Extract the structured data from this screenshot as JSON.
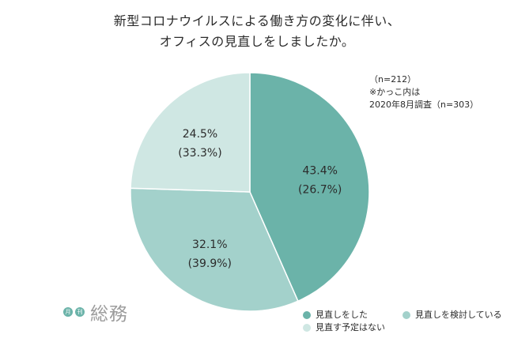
{
  "title_lines": [
    "新型コロナウイルスによる働き方の変化に伴い、",
    "オフィスの見直しをしましたか。"
  ],
  "notes": [
    "（n=212）",
    "※かっこ内は",
    "2020年8月調査（n=303）"
  ],
  "logo": {
    "badge1": "月",
    "badge2": "刊",
    "word": "総務"
  },
  "colors": {
    "did_review": "#6bb3a9",
    "considering": "#a3d1cb",
    "no_plan": "#cfe7e3",
    "border": "#ffffff",
    "text": "#2b2b2b"
  },
  "chart_data": {
    "type": "pie",
    "start": "12 o'clock, clockwise",
    "series": [
      {
        "name": "見直しをした",
        "value": 43.4,
        "previous": 26.7,
        "label": "43.4%",
        "previous_label": "(26.7%)",
        "color": "#6bb3a9"
      },
      {
        "name": "見直しを検討している",
        "value": 32.1,
        "previous": 39.9,
        "label": "32.1%",
        "previous_label": "(39.9%)",
        "color": "#a3d1cb"
      },
      {
        "name": "見直す予定はない",
        "value": 24.5,
        "previous": 33.3,
        "label": "24.5%",
        "previous_label": "(33.3%)",
        "color": "#cfe7e3"
      }
    ],
    "legend": [
      {
        "label": "見直しをした",
        "color": "#6bb3a9"
      },
      {
        "label": "見直しを検討している",
        "color": "#a3d1cb"
      },
      {
        "label": "見直す予定はない",
        "color": "#cfe7e3"
      }
    ]
  }
}
